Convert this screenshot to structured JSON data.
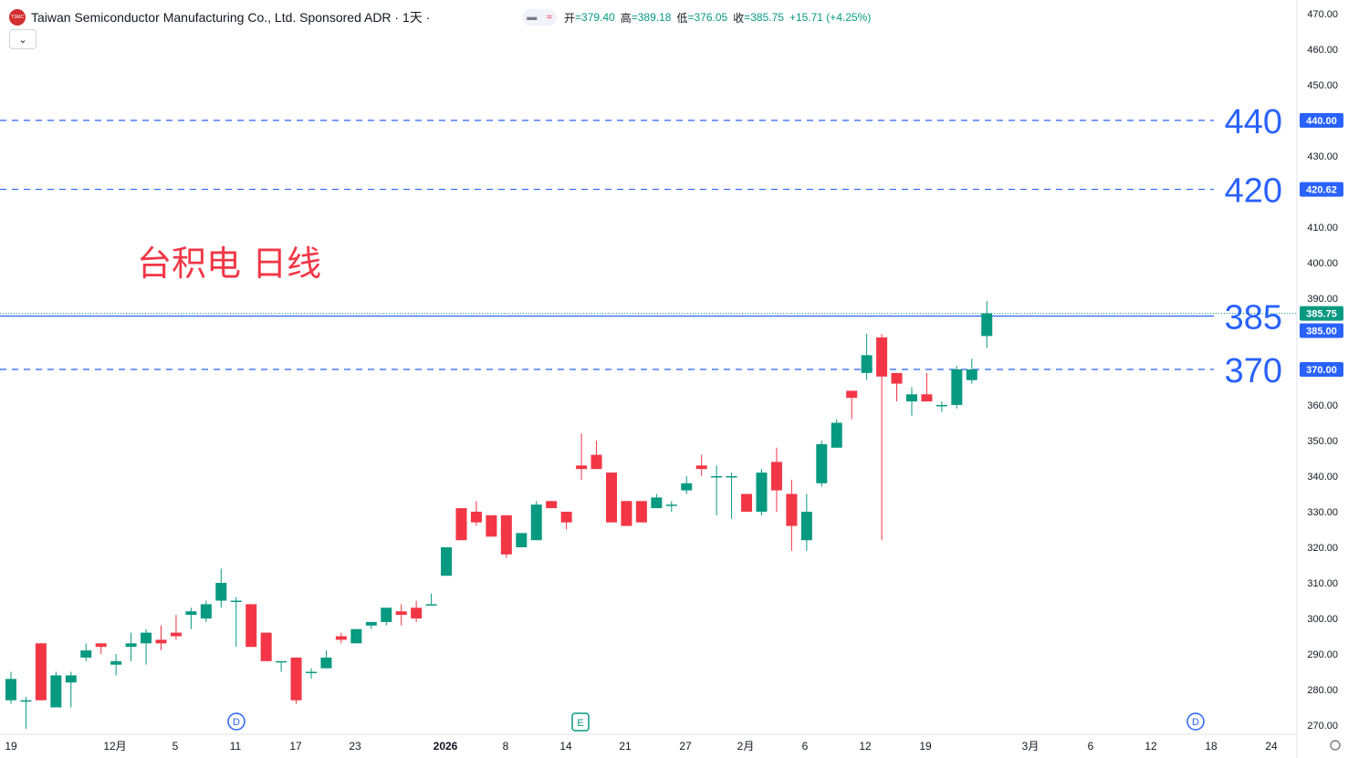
{
  "header": {
    "logo_text": "TSMC",
    "title": "Taiwan Semiconductor Manufacturing Co., Ltd. Sponsored ADR · 1天 ·",
    "open_label": "开",
    "open": "=379.40",
    "high_label": "高",
    "high": "=389.18",
    "low_label": "低",
    "low": "=376.05",
    "close_label": "收",
    "close": "=385.75",
    "change": "+15.71 (+4.25%)",
    "collapse_icon": "chevron-down-icon"
  },
  "colors": {
    "up": "#089981",
    "down": "#f23645",
    "line": "#2962ff",
    "annotation": "#f23645",
    "text": "#131722"
  },
  "chart_data": {
    "type": "candlestick",
    "title": "台积电 日线",
    "ylim": [
      265,
      472
    ],
    "y_ticks": [
      "470.00",
      "460.00",
      "450.00",
      "440.00",
      "430.00",
      "420.00",
      "410.00",
      "400.00",
      "390.00",
      "380.00",
      "370.00",
      "360.00",
      "350.00",
      "340.00",
      "330.00",
      "320.00",
      "310.00",
      "300.00",
      "290.00",
      "280.00",
      "270.00"
    ],
    "x_ticks": [
      "19",
      "12月",
      "5",
      "11",
      "17",
      "23",
      "2026",
      "8",
      "14",
      "21",
      "27",
      "2月",
      "6",
      "12",
      "19",
      "3月",
      "6",
      "12",
      "18",
      "24"
    ],
    "events": [
      "D",
      "E",
      "D"
    ],
    "horizontal_lines": [
      {
        "label": "440",
        "tag": "440.00",
        "value": 440.0,
        "style": "dashed"
      },
      {
        "label": "420",
        "tag": "420.62",
        "value": 420.62,
        "style": "dashed"
      },
      {
        "label": "385",
        "tag": "385.00",
        "value": 385.0,
        "style": "solid"
      },
      {
        "label": "370",
        "tag": "370.00",
        "value": 370.0,
        "style": "dashed"
      }
    ],
    "last_price": {
      "tag": "385.75",
      "value": 385.75
    },
    "candles": [
      {
        "o": 277,
        "h": 285,
        "l": 276,
        "c": 283
      },
      {
        "o": 277,
        "h": 278,
        "l": 269,
        "c": 277
      },
      {
        "o": 293,
        "h": 293,
        "l": 277,
        "c": 277
      },
      {
        "o": 275,
        "h": 285,
        "l": 275,
        "c": 284
      },
      {
        "o": 282,
        "h": 285,
        "l": 275,
        "c": 284
      },
      {
        "o": 289,
        "h": 293,
        "l": 288,
        "c": 291
      },
      {
        "o": 293,
        "h": 293,
        "l": 290,
        "c": 292
      },
      {
        "o": 287,
        "h": 290,
        "l": 284,
        "c": 288
      },
      {
        "o": 292,
        "h": 296,
        "l": 288,
        "c": 293
      },
      {
        "o": 293,
        "h": 297,
        "l": 287,
        "c": 296
      },
      {
        "o": 294,
        "h": 298,
        "l": 291,
        "c": 293
      },
      {
        "o": 296,
        "h": 301,
        "l": 294,
        "c": 295
      },
      {
        "o": 301,
        "h": 303,
        "l": 297,
        "c": 302
      },
      {
        "o": 300,
        "h": 305,
        "l": 299,
        "c": 304
      },
      {
        "o": 305,
        "h": 314,
        "l": 303,
        "c": 310
      },
      {
        "o": 305,
        "h": 306,
        "l": 292,
        "c": 305
      },
      {
        "o": 304,
        "h": 304,
        "l": 292,
        "c": 292
      },
      {
        "o": 296,
        "h": 296,
        "l": 288,
        "c": 288
      },
      {
        "o": 288,
        "h": 288,
        "l": 285,
        "c": 288
      },
      {
        "o": 289,
        "h": 289,
        "l": 276,
        "c": 277
      },
      {
        "o": 285,
        "h": 286,
        "l": 283,
        "c": 285
      },
      {
        "o": 286,
        "h": 291,
        "l": 286,
        "c": 289
      },
      {
        "o": 295,
        "h": 296,
        "l": 293,
        "c": 294
      },
      {
        "o": 293,
        "h": 297,
        "l": 293,
        "c": 297
      },
      {
        "o": 298,
        "h": 299,
        "l": 297,
        "c": 299
      },
      {
        "o": 299,
        "h": 303,
        "l": 298,
        "c": 303
      },
      {
        "o": 302,
        "h": 304,
        "l": 298,
        "c": 301
      },
      {
        "o": 303,
        "h": 305,
        "l": 299,
        "c": 300
      },
      {
        "o": 304,
        "h": 307,
        "l": 304,
        "c": 304
      },
      {
        "o": 312,
        "h": 320,
        "l": 312,
        "c": 320
      },
      {
        "o": 331,
        "h": 331,
        "l": 322,
        "c": 322
      },
      {
        "o": 330,
        "h": 333,
        "l": 326,
        "c": 327
      },
      {
        "o": 329,
        "h": 329,
        "l": 323,
        "c": 323
      },
      {
        "o": 329,
        "h": 329,
        "l": 317,
        "c": 318
      },
      {
        "o": 320,
        "h": 324,
        "l": 320,
        "c": 324
      },
      {
        "o": 322,
        "h": 333,
        "l": 322,
        "c": 332
      },
      {
        "o": 333,
        "h": 333,
        "l": 331,
        "c": 331
      },
      {
        "o": 330,
        "h": 330,
        "l": 325,
        "c": 327
      },
      {
        "o": 343,
        "h": 352,
        "l": 339,
        "c": 342
      },
      {
        "o": 346,
        "h": 350,
        "l": 342,
        "c": 342
      },
      {
        "o": 341,
        "h": 341,
        "l": 327,
        "c": 327
      },
      {
        "o": 333,
        "h": 333,
        "l": 326,
        "c": 326
      },
      {
        "o": 333,
        "h": 333,
        "l": 327,
        "c": 327
      },
      {
        "o": 331,
        "h": 335,
        "l": 331,
        "c": 334
      },
      {
        "o": 332,
        "h": 333,
        "l": 330,
        "c": 332
      },
      {
        "o": 336,
        "h": 340,
        "l": 335,
        "c": 338
      },
      {
        "o": 343,
        "h": 346,
        "l": 340,
        "c": 342
      },
      {
        "o": 340,
        "h": 343,
        "l": 329,
        "c": 340
      },
      {
        "o": 340,
        "h": 341,
        "l": 328,
        "c": 340
      },
      {
        "o": 335,
        "h": 335,
        "l": 330,
        "c": 330
      },
      {
        "o": 330,
        "h": 342,
        "l": 329,
        "c": 341
      },
      {
        "o": 344,
        "h": 348,
        "l": 330,
        "c": 336
      },
      {
        "o": 335,
        "h": 339,
        "l": 319,
        "c": 326
      },
      {
        "o": 322,
        "h": 335,
        "l": 319,
        "c": 330
      },
      {
        "o": 338,
        "h": 350,
        "l": 337,
        "c": 349
      },
      {
        "o": 348,
        "h": 356,
        "l": 348,
        "c": 355
      },
      {
        "o": 364,
        "h": 364,
        "l": 356,
        "c": 362
      },
      {
        "o": 369,
        "h": 380,
        "l": 367,
        "c": 374
      },
      {
        "o": 379,
        "h": 380,
        "l": 322,
        "c": 368
      },
      {
        "o": 369,
        "h": 369,
        "l": 361,
        "c": 366
      },
      {
        "o": 361,
        "h": 365,
        "l": 357,
        "c": 363
      },
      {
        "o": 363,
        "h": 369,
        "l": 361,
        "c": 361
      },
      {
        "o": 360,
        "h": 361,
        "l": 358,
        "c": 360
      },
      {
        "o": 360,
        "h": 371,
        "l": 359,
        "c": 370
      },
      {
        "o": 367,
        "h": 373,
        "l": 366,
        "c": 370
      },
      {
        "o": 379.4,
        "h": 389.18,
        "l": 376.05,
        "c": 385.75
      }
    ]
  }
}
